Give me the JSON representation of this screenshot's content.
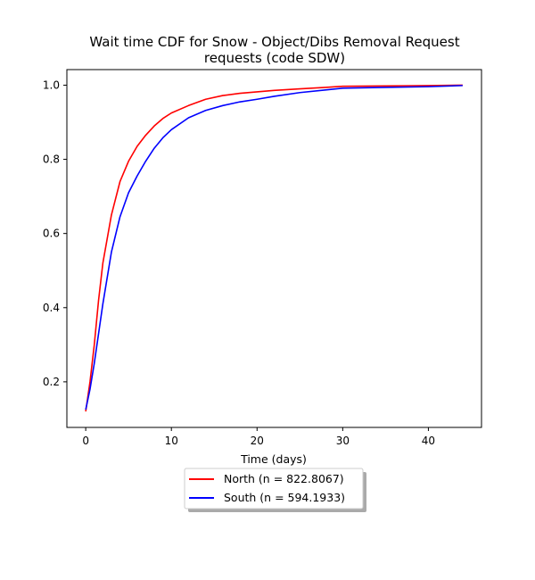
{
  "chart_data": {
    "type": "line",
    "title_lines": [
      "Wait time CDF for Snow - Object/Dibs Removal Request",
      "requests (code SDW)"
    ],
    "xlabel": "Time (days)",
    "ylabel": "",
    "xlim": [
      -2.2,
      46.2
    ],
    "ylim": [
      0.077,
      1.042
    ],
    "xticks": [
      0,
      10,
      20,
      30,
      40
    ],
    "yticks": [
      0.2,
      0.4,
      0.6,
      0.8,
      1.0
    ],
    "xtick_labels": [
      "0",
      "10",
      "20",
      "30",
      "40"
    ],
    "ytick_labels": [
      "0.2",
      "0.4",
      "0.6",
      "0.8",
      "1.0"
    ],
    "grid": false,
    "legend_position": "below plot, centered, with shadow",
    "series": [
      {
        "name": "North (n = 822.8067)",
        "color": "#ff0000",
        "points": [
          [
            0,
            0.12
          ],
          [
            0.5,
            0.2
          ],
          [
            1,
            0.3
          ],
          [
            1.5,
            0.42
          ],
          [
            2,
            0.52
          ],
          [
            3,
            0.65
          ],
          [
            4,
            0.74
          ],
          [
            5,
            0.795
          ],
          [
            6,
            0.835
          ],
          [
            7,
            0.865
          ],
          [
            8,
            0.89
          ],
          [
            9,
            0.91
          ],
          [
            10,
            0.925
          ],
          [
            12,
            0.945
          ],
          [
            14,
            0.962
          ],
          [
            16,
            0.972
          ],
          [
            18,
            0.978
          ],
          [
            20,
            0.982
          ],
          [
            22,
            0.986
          ],
          [
            25,
            0.99
          ],
          [
            28,
            0.994
          ],
          [
            30,
            0.997
          ],
          [
            35,
            0.998
          ],
          [
            40,
            0.999
          ],
          [
            44,
            1.0
          ]
        ]
      },
      {
        "name": "South (n = 594.1933)",
        "color": "#0000ff",
        "points": [
          [
            0,
            0.125
          ],
          [
            0.5,
            0.18
          ],
          [
            1,
            0.25
          ],
          [
            1.5,
            0.33
          ],
          [
            2,
            0.41
          ],
          [
            3,
            0.55
          ],
          [
            4,
            0.645
          ],
          [
            5,
            0.71
          ],
          [
            6,
            0.755
          ],
          [
            7,
            0.795
          ],
          [
            8,
            0.83
          ],
          [
            9,
            0.858
          ],
          [
            10,
            0.88
          ],
          [
            12,
            0.912
          ],
          [
            14,
            0.932
          ],
          [
            16,
            0.945
          ],
          [
            18,
            0.955
          ],
          [
            20,
            0.962
          ],
          [
            22,
            0.97
          ],
          [
            25,
            0.98
          ],
          [
            28,
            0.987
          ],
          [
            30,
            0.992
          ],
          [
            35,
            0.994
          ],
          [
            40,
            0.996
          ],
          [
            44,
            0.999
          ]
        ]
      }
    ]
  }
}
